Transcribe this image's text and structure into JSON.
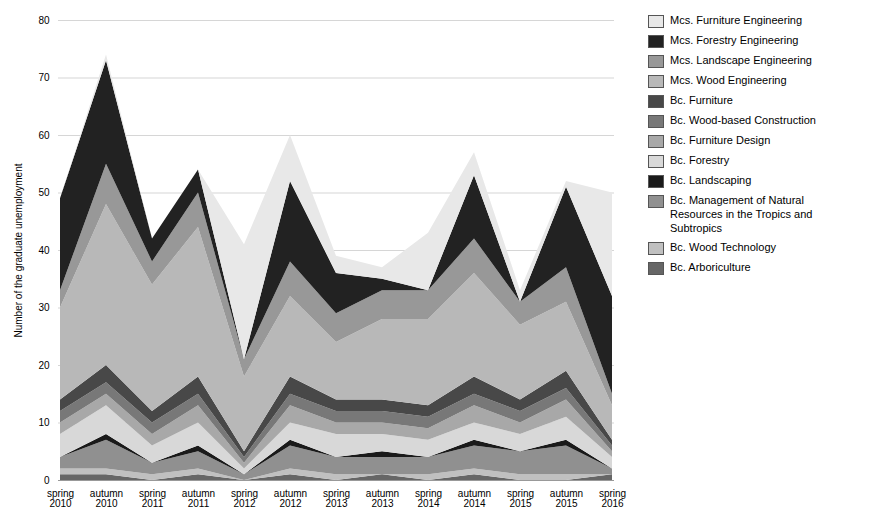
{
  "chart_data": {
    "type": "area",
    "stacked": true,
    "categories": [
      "spring\n2010",
      "autumn\n2010",
      "spring\n2011",
      "autumn\n2011",
      "spring\n2012",
      "autumn\n2012",
      "spring\n2013",
      "autumn\n2013",
      "spring\n2014",
      "autumn\n2014",
      "spring\n2015",
      "autumn\n2015",
      "spring\n2016"
    ],
    "series": [
      {
        "name": "Bc. Arboriculture",
        "color": "#666666",
        "values": [
          1,
          1,
          0,
          1,
          0,
          1,
          0,
          1,
          0,
          1,
          0,
          0,
          1
        ]
      },
      {
        "name": "Bc. Wood Technology",
        "color": "#c0c0c0",
        "values": [
          1,
          1,
          1,
          1,
          0,
          1,
          1,
          0,
          1,
          1,
          1,
          1,
          0
        ]
      },
      {
        "name": "Bc. Management of Natural\nResources in the Tropics and\nSubtropics",
        "color": "#909090",
        "values": [
          2,
          5,
          2,
          3,
          1,
          4,
          3,
          3,
          3,
          4,
          4,
          5,
          1
        ]
      },
      {
        "name": "Bc. Landscaping",
        "color": "#1a1a1a",
        "values": [
          0,
          1,
          0,
          1,
          0,
          1,
          0,
          1,
          0,
          1,
          0,
          1,
          0
        ]
      },
      {
        "name": "Bc. Forestry",
        "color": "#d8d8d8",
        "values": [
          4,
          5,
          3,
          4,
          1,
          3,
          4,
          3,
          3,
          3,
          3,
          4,
          2
        ]
      },
      {
        "name": "Bc. Furniture Design",
        "color": "#a8a8a8",
        "values": [
          2,
          2,
          2,
          3,
          1,
          3,
          2,
          2,
          2,
          3,
          2,
          3,
          1
        ]
      },
      {
        "name": "Bc. Wood-based Construction",
        "color": "#787878",
        "values": [
          2,
          2,
          2,
          2,
          1,
          2,
          2,
          2,
          2,
          2,
          2,
          2,
          1
        ]
      },
      {
        "name": "Bc. Furniture",
        "color": "#484848",
        "values": [
          2,
          3,
          2,
          3,
          1,
          3,
          2,
          2,
          2,
          3,
          2,
          3,
          1
        ]
      },
      {
        "name": "Mcs. Wood Engineering",
        "color": "#b8b8b8",
        "values": [
          16,
          28,
          22,
          26,
          13,
          14,
          10,
          14,
          15,
          18,
          13,
          12,
          6
        ]
      },
      {
        "name": "Mcs. Landscape Engineering",
        "color": "#989898",
        "values": [
          3,
          7,
          4,
          6,
          3,
          6,
          5,
          5,
          5,
          6,
          4,
          6,
          2
        ]
      },
      {
        "name": "Mcs. Forestry Engineering",
        "color": "#222222",
        "values": [
          16,
          18,
          4,
          4,
          0,
          14,
          7,
          2,
          0,
          11,
          0,
          14,
          17
        ]
      },
      {
        "name": "Mcs. Furniture Engineering",
        "color": "#e8e8e8",
        "values": [
          0,
          1,
          0,
          0,
          20,
          8,
          3,
          2,
          10,
          4,
          2,
          1,
          18
        ]
      }
    ],
    "ylabel": "Number of the graduate unemployment",
    "ylim": [
      0,
      80
    ],
    "yticks": [
      0,
      10,
      20,
      30,
      40,
      50,
      60,
      70,
      80
    ],
    "grid": true,
    "legend": "right"
  }
}
